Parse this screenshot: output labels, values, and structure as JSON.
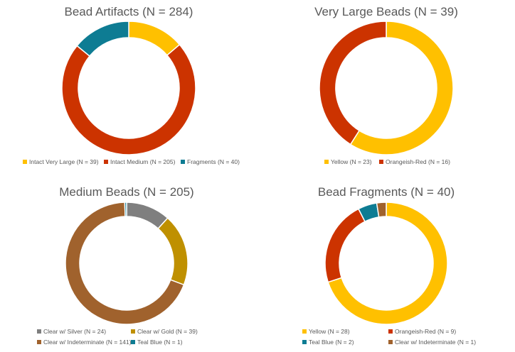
{
  "chart_data": [
    {
      "type": "donut",
      "title": "Bead Artifacts (N = 284)",
      "categories": [
        "Intact Very Large",
        "Intact Medium",
        "Fragments"
      ],
      "values": [
        39,
        205,
        40
      ],
      "colors": [
        "#FFC000",
        "#CC3300",
        "#0E7C93"
      ],
      "legend": [
        "Intact Very Large (N = 39)",
        "Intact Medium (N = 205)",
        "Fragments (N = 40)"
      ],
      "legend_position": "bottom"
    },
    {
      "type": "donut",
      "title": "Very Large Beads (N = 39)",
      "categories": [
        "Yellow",
        "Orangeish-Red"
      ],
      "values": [
        23,
        16
      ],
      "colors": [
        "#FFC000",
        "#CC3300"
      ],
      "legend": [
        "Yellow (N = 23)",
        "Orangeish-Red (N = 16)"
      ],
      "legend_position": "bottom"
    },
    {
      "type": "donut",
      "title": "Medium Beads (N = 205)",
      "categories": [
        "Clear w/ Silver",
        "Clear w/ Gold",
        "Clear w/ Indeterminate",
        "Teal Blue"
      ],
      "values": [
        24,
        39,
        141,
        1
      ],
      "colors": [
        "#7F7F7F",
        "#BF9000",
        "#A0622D",
        "#0E7C93"
      ],
      "legend": [
        "Clear w/ Silver (N = 24)",
        "Clear w/ Gold (N = 39)",
        "Clear w/ Indeterminate (N = 141)",
        "Teal Blue (N = 1)"
      ],
      "legend_position": "bottom"
    },
    {
      "type": "donut",
      "title": "Bead Fragments (N = 40)",
      "categories": [
        "Yellow",
        "Orangeish-Red",
        "Teal Blue",
        "Clear w/ Indeterminate"
      ],
      "values": [
        28,
        9,
        2,
        1
      ],
      "colors": [
        "#FFC000",
        "#CC3300",
        "#0E7C93",
        "#A0622D"
      ],
      "legend": [
        "Yellow (N = 28)",
        "Orangeish-Red (N = 9)",
        "Teal Blue (N = 2)",
        "Clear w/ Indeterminate (N = 1)"
      ],
      "legend_position": "bottom"
    }
  ]
}
